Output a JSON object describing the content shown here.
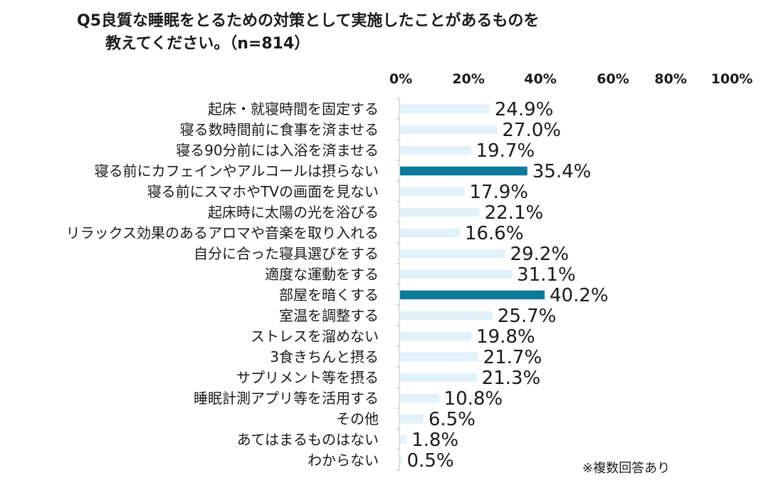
{
  "title": {
    "line1": "Q5良質な睡眠をとるための対策として実施したことがあるものを",
    "line2": "教えてください。（n=814）"
  },
  "footnote": "※複数回答あり",
  "colors": {
    "bar": "#e2f2fa",
    "highlight": "#0d7a9c"
  },
  "chart_data": {
    "type": "bar",
    "orientation": "horizontal",
    "categories": [
      "起床・就寝時間を固定する",
      "寝る数時間前に食事を済ませる",
      "寝る90分前には入浴を済ませる",
      "寝る前にカフェインやアルコールは摂らない",
      "寝る前にスマホやTVの画面を見ない",
      "起床時に太陽の光を浴びる",
      "リラックス効果のあるアロマや音楽を取り入れる",
      "自分に合った寝具選びをする",
      "適度な運動をする",
      "部屋を暗くする",
      "室温を調整する",
      "ストレスを溜めない",
      "3食きちんと摂る",
      "サプリメント等を摂る",
      "睡眠計測アプリ等を活用する",
      "その他",
      "あてはまるものはない",
      "わからない"
    ],
    "values": [
      24.9,
      27.0,
      19.7,
      35.4,
      17.9,
      22.1,
      16.6,
      29.2,
      31.1,
      40.2,
      25.7,
      19.8,
      21.7,
      21.3,
      10.8,
      6.5,
      1.8,
      0.5
    ],
    "value_labels": [
      "24.9%",
      "27.0%",
      "19.7%",
      "35.4%",
      "17.9%",
      "22.1%",
      "16.6%",
      "29.2%",
      "31.1%",
      "40.2%",
      "25.7%",
      "19.8%",
      "21.7%",
      "21.3%",
      "10.8%",
      "6.5%",
      "1.8%",
      "0.5%"
    ],
    "highlighted": [
      3,
      9
    ],
    "xlim": [
      0,
      100
    ],
    "xticks": [
      0,
      20,
      40,
      60,
      80,
      100
    ],
    "xtick_labels": [
      "0%",
      "20%",
      "40%",
      "60%",
      "80%",
      "100%"
    ],
    "axis_position": "top",
    "grid": false
  }
}
